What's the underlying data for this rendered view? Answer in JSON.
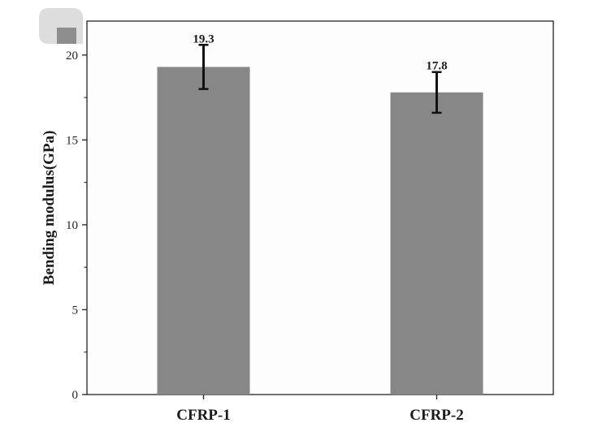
{
  "chart_data": {
    "type": "bar",
    "categories": [
      "CFRP-1",
      "CFRP-2"
    ],
    "values": [
      19.3,
      17.8
    ],
    "error": [
      [
        18.0,
        20.6
      ],
      [
        16.6,
        19.0
      ]
    ],
    "data_labels": [
      "19.3",
      "17.8"
    ],
    "ylabel": "Bending modulus(GPa)",
    "xlabel": "",
    "ylim": [
      0,
      22
    ],
    "yticks": [
      0,
      5,
      10,
      15,
      20
    ],
    "grid": false,
    "colors": {
      "bar": "#878787",
      "error": "#111111",
      "axis": "#222222",
      "logo_light": "#dddddd",
      "logo_dark": "#8e8e8e"
    }
  }
}
